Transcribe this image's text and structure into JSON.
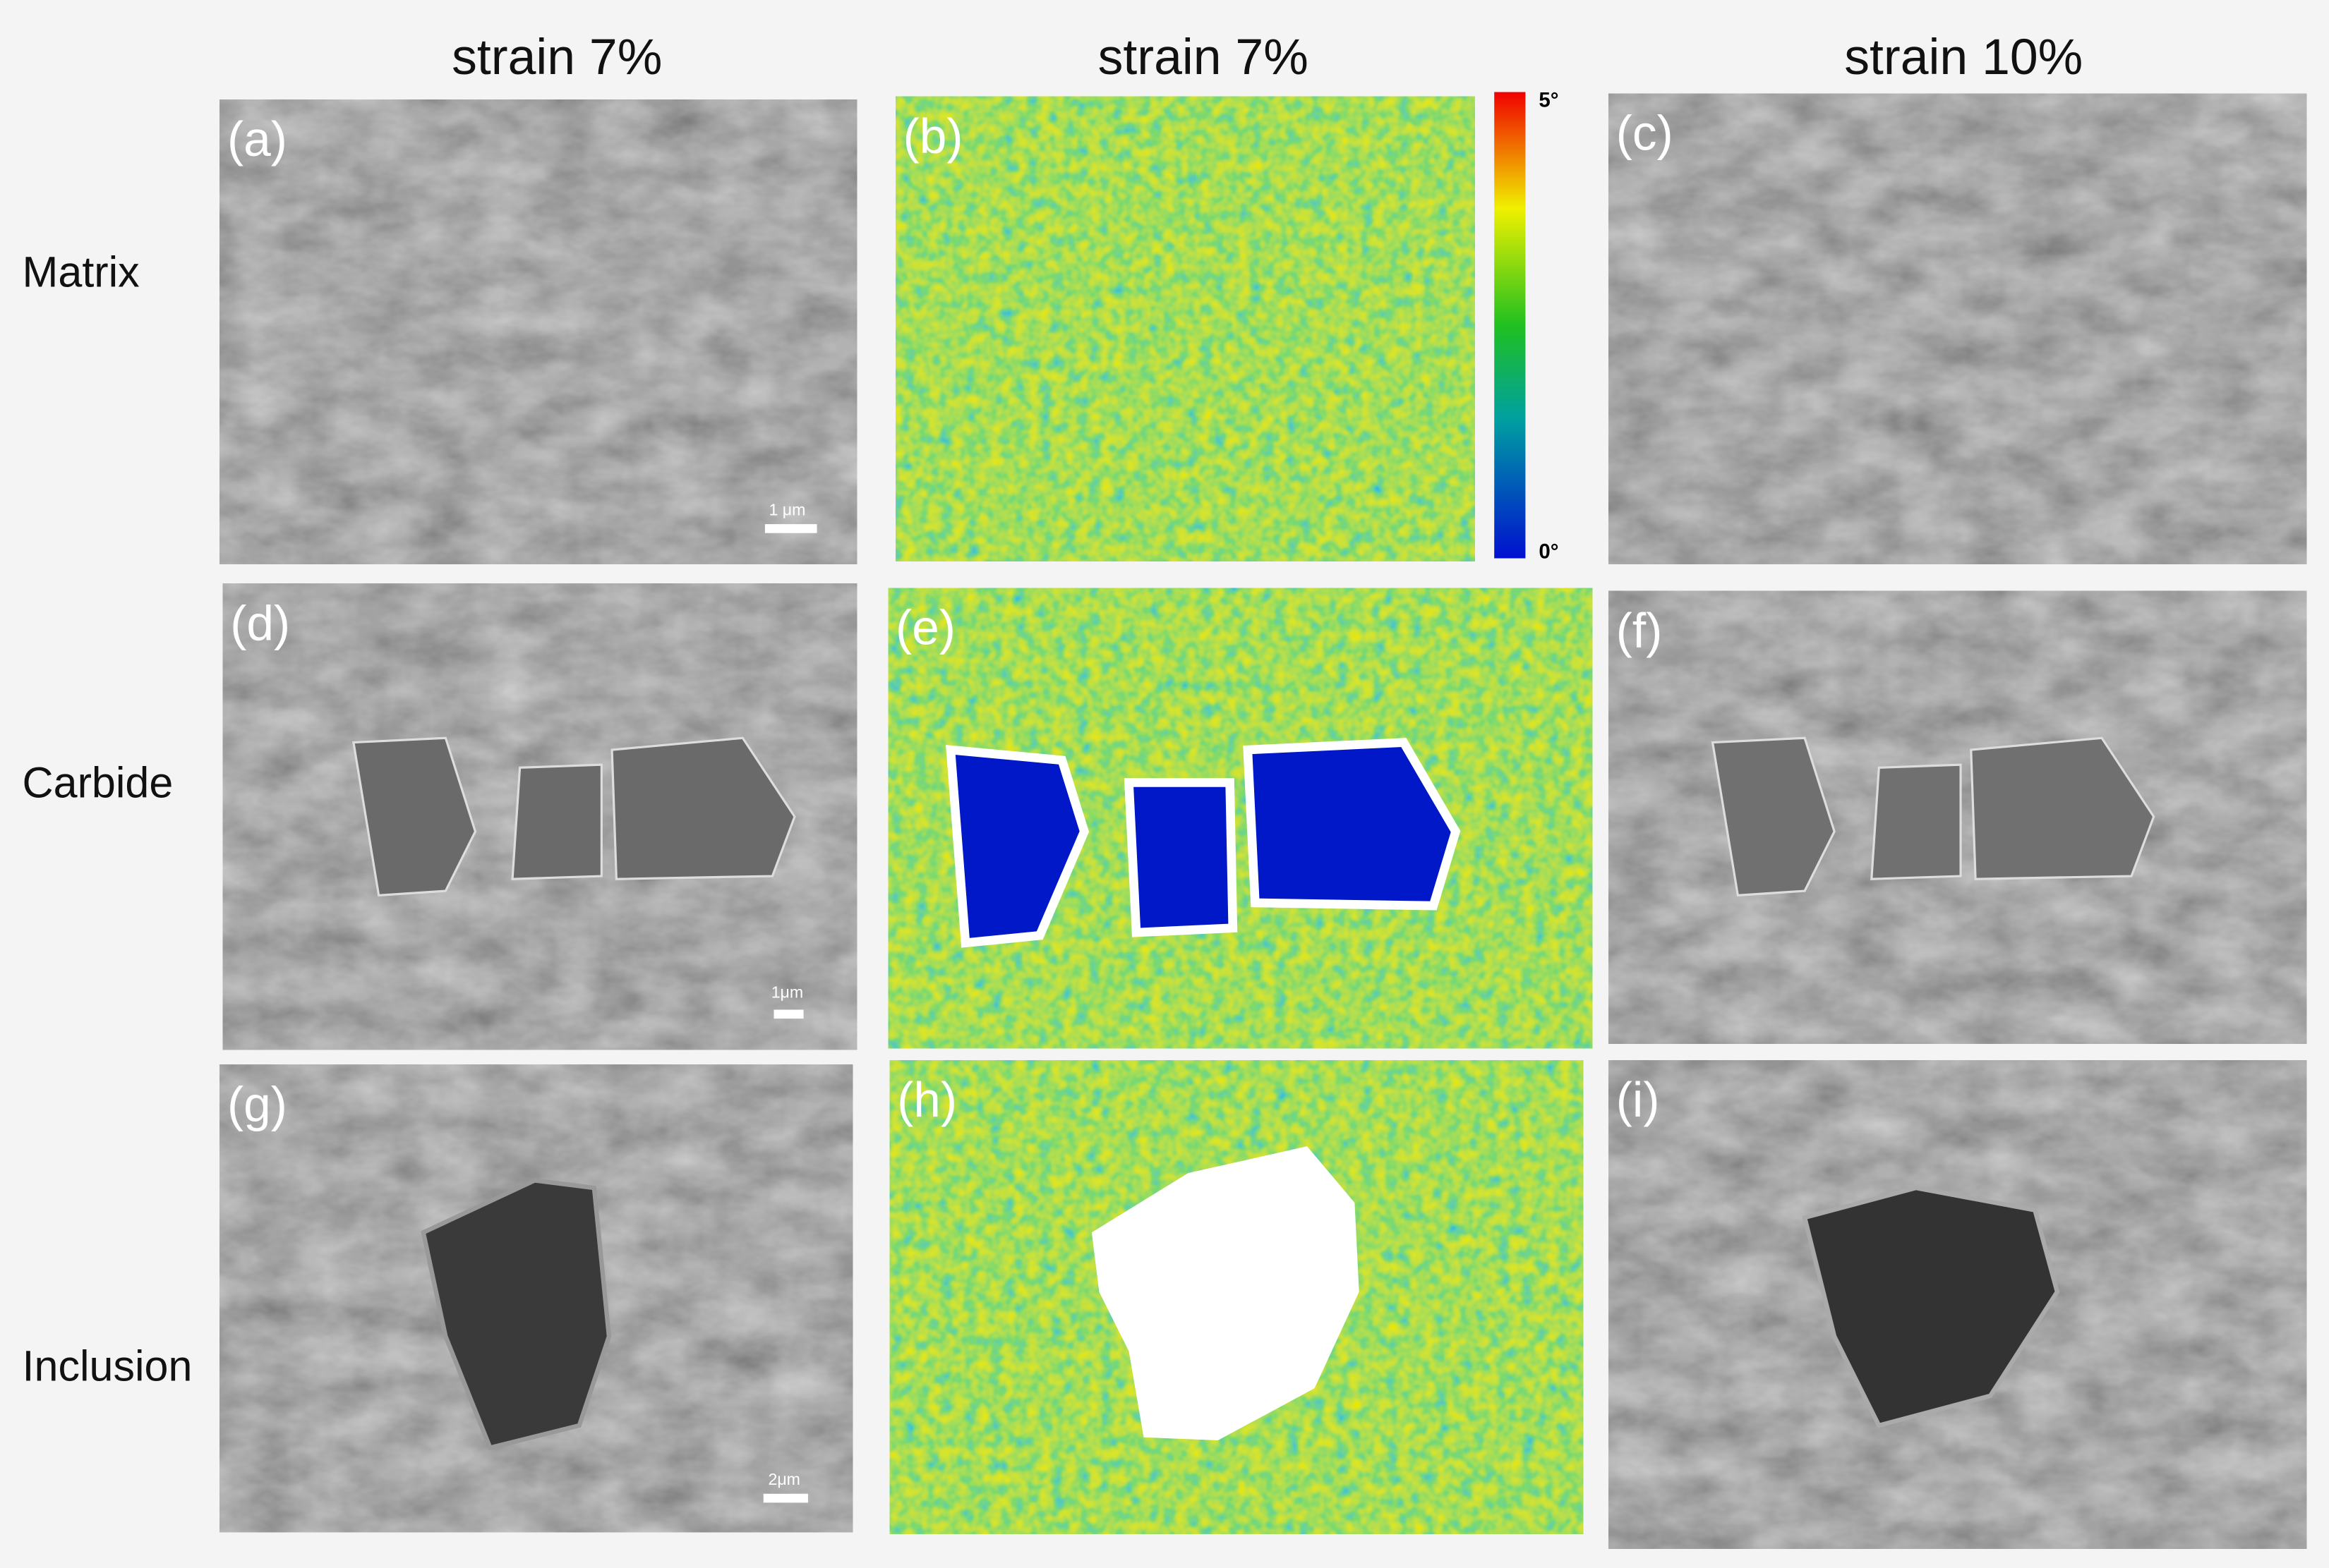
{
  "headers": [
    "strain 7%",
    "strain 7%",
    "strain 10%"
  ],
  "rows": [
    "Matrix",
    "Carbide",
    "Inclusion"
  ],
  "panels": [
    "(a)",
    "(b)",
    "(c)",
    "(d)",
    "(e)",
    "(f)",
    "(g)",
    "(h)",
    "(i)"
  ],
  "scale_bars": [
    "1 μm",
    "1μm",
    "2μm"
  ],
  "colorbar": {
    "max": "5°",
    "min": "0°"
  }
}
